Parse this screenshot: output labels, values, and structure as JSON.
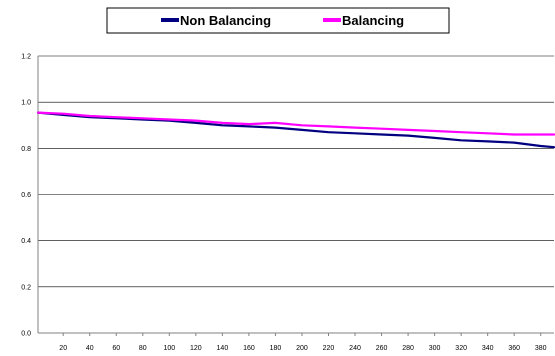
{
  "chart_data": {
    "type": "line",
    "title": "",
    "xlabel": "",
    "ylabel": "",
    "xlim": [
      1,
      390
    ],
    "ylim": [
      0,
      1.2
    ],
    "yticks": [
      0.0,
      0.2,
      0.4,
      0.6,
      0.8,
      1.0,
      1.2
    ],
    "ytick_labels": [
      "0.0",
      "0.2",
      "0.4",
      "0.6",
      "0.8",
      "1.0",
      "1.2"
    ],
    "xticks": [
      20,
      40,
      60,
      80,
      100,
      120,
      140,
      160,
      180,
      200,
      220,
      240,
      260,
      280,
      300,
      320,
      340,
      360,
      380
    ],
    "xtick_labels": [
      "20",
      "40",
      "60",
      "80",
      "100",
      "120",
      "140",
      "160",
      "180",
      "200",
      "220",
      "240",
      "260",
      "280",
      "300",
      "320",
      "340",
      "360",
      "380"
    ],
    "grid": "horizontal",
    "legend_position": "top-center",
    "series": [
      {
        "name": "Non Balancing",
        "color": "#000080",
        "x": [
          1,
          20,
          40,
          60,
          80,
          100,
          120,
          140,
          160,
          180,
          200,
          220,
          240,
          260,
          280,
          300,
          320,
          340,
          360,
          380,
          390
        ],
        "values": [
          0.955,
          0.945,
          0.935,
          0.93,
          0.925,
          0.92,
          0.91,
          0.9,
          0.895,
          0.89,
          0.88,
          0.87,
          0.865,
          0.86,
          0.855,
          0.845,
          0.835,
          0.83,
          0.825,
          0.81,
          0.805
        ]
      },
      {
        "name": "Balancing",
        "color": "#ff00ff",
        "x": [
          1,
          20,
          40,
          60,
          80,
          100,
          120,
          140,
          160,
          180,
          200,
          220,
          240,
          260,
          280,
          300,
          320,
          340,
          360,
          380,
          390
        ],
        "values": [
          0.955,
          0.95,
          0.94,
          0.935,
          0.93,
          0.925,
          0.92,
          0.91,
          0.905,
          0.91,
          0.9,
          0.895,
          0.89,
          0.885,
          0.88,
          0.875,
          0.87,
          0.865,
          0.86,
          0.86,
          0.86
        ]
      }
    ]
  }
}
